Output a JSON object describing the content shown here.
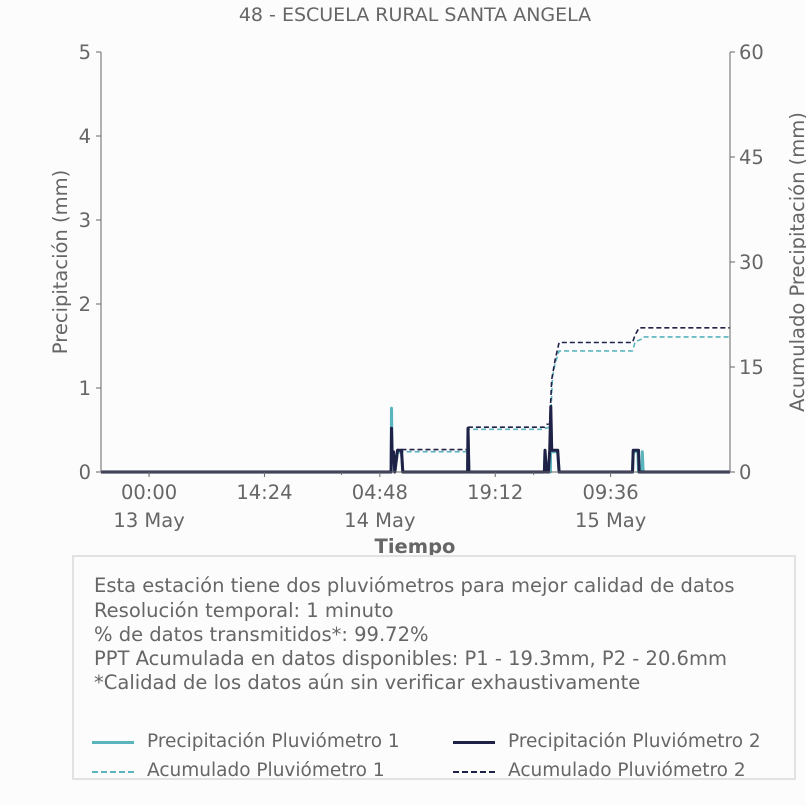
{
  "chart_data": {
    "type": "line",
    "title": "48 - ESCUELA RURAL SANTA ANGELA",
    "xlabel": "Tiempo",
    "ylabel": "Precipitación (mm)",
    "y2label": "Acumulado Precipitación (mm)",
    "ylim": [
      0,
      5
    ],
    "y2lim": [
      0,
      60
    ],
    "yticks": [
      "0",
      "1",
      "2",
      "3",
      "4",
      "5"
    ],
    "y2ticks": [
      "0",
      "15",
      "30",
      "45",
      "60"
    ],
    "xlim": [
      "2023-05-12T18:00",
      "2023-05-16T00:30"
    ],
    "xticks": [
      {
        "x": "2023-05-13T00:00",
        "time": "00:00",
        "date": "13 May"
      },
      {
        "x": "2023-05-13T14:24",
        "time": "14:24",
        "date": ""
      },
      {
        "x": "2023-05-14T04:48",
        "time": "04:48",
        "date": "14 May"
      },
      {
        "x": "2023-05-14T19:12",
        "time": "19:12",
        "date": ""
      },
      {
        "x": "2023-05-15T09:36",
        "time": "09:36",
        "date": "15 May"
      }
    ],
    "date_ticks": [
      {
        "x": "2023-05-13T00:00",
        "label": "13 May"
      },
      {
        "x": "2023-05-14T00:00",
        "label": "14 May"
      },
      {
        "x": "2023-05-15T00:00",
        "label": "15 May"
      }
    ],
    "grid": false,
    "series": [
      {
        "name": "Precipitación Pluviómetro 1",
        "axis": "left",
        "style": "solid",
        "color": "#5ab4be",
        "points": [
          [
            "2023-05-12T18:00",
            0
          ],
          [
            "2023-05-14T06:12",
            0
          ],
          [
            "2023-05-14T06:15",
            0.76
          ],
          [
            "2023-05-14T06:20",
            0.2
          ],
          [
            "2023-05-14T06:30",
            0.24
          ],
          [
            "2023-05-14T06:40",
            0
          ],
          [
            "2023-05-14T07:00",
            0.24
          ],
          [
            "2023-05-14T07:30",
            0.24
          ],
          [
            "2023-05-14T07:40",
            0
          ],
          [
            "2023-05-14T15:45",
            0
          ],
          [
            "2023-05-14T15:48",
            0.48
          ],
          [
            "2023-05-14T15:55",
            0
          ],
          [
            "2023-05-15T01:20",
            0
          ],
          [
            "2023-05-15T01:25",
            0.24
          ],
          [
            "2023-05-15T01:35",
            0
          ],
          [
            "2023-05-15T02:05",
            0
          ],
          [
            "2023-05-15T02:08",
            0.7
          ],
          [
            "2023-05-15T02:15",
            0.24
          ],
          [
            "2023-05-15T03:00",
            0.24
          ],
          [
            "2023-05-15T03:10",
            0
          ],
          [
            "2023-05-15T12:20",
            0
          ],
          [
            "2023-05-15T12:25",
            0.24
          ],
          [
            "2023-05-15T13:00",
            0.24
          ],
          [
            "2023-05-15T13:05",
            0
          ],
          [
            "2023-05-15T13:30",
            0
          ],
          [
            "2023-05-15T13:33",
            0.24
          ],
          [
            "2023-05-15T13:40",
            0
          ],
          [
            "2023-05-16T00:30",
            0
          ]
        ]
      },
      {
        "name": "Precipitación Pluviómetro 2",
        "axis": "left",
        "style": "solid",
        "color": "#1f2147",
        "points": [
          [
            "2023-05-12T18:00",
            0
          ],
          [
            "2023-05-14T06:12",
            0
          ],
          [
            "2023-05-14T06:15",
            0.52
          ],
          [
            "2023-05-14T06:20",
            0.24
          ],
          [
            "2023-05-14T06:30",
            0.24
          ],
          [
            "2023-05-14T06:40",
            0
          ],
          [
            "2023-05-14T07:00",
            0.26
          ],
          [
            "2023-05-14T07:30",
            0.26
          ],
          [
            "2023-05-14T07:40",
            0
          ],
          [
            "2023-05-14T15:45",
            0
          ],
          [
            "2023-05-14T15:48",
            0.52
          ],
          [
            "2023-05-14T15:55",
            0
          ],
          [
            "2023-05-15T01:20",
            0
          ],
          [
            "2023-05-15T01:25",
            0.26
          ],
          [
            "2023-05-15T01:35",
            0
          ],
          [
            "2023-05-15T01:50",
            0
          ],
          [
            "2023-05-15T02:00",
            0.26
          ],
          [
            "2023-05-15T02:08",
            0.78
          ],
          [
            "2023-05-15T02:15",
            0.26
          ],
          [
            "2023-05-15T03:00",
            0.26
          ],
          [
            "2023-05-15T03:10",
            0
          ],
          [
            "2023-05-15T12:20",
            0
          ],
          [
            "2023-05-15T12:25",
            0.26
          ],
          [
            "2023-05-15T13:05",
            0.26
          ],
          [
            "2023-05-15T13:10",
            0
          ],
          [
            "2023-05-16T00:30",
            0
          ]
        ]
      },
      {
        "name": "Acumulado Pluviómetro 1",
        "axis": "right",
        "style": "dashed",
        "color": "#5ab4be",
        "points": [
          [
            "2023-05-12T18:00",
            0
          ],
          [
            "2023-05-14T06:12",
            0
          ],
          [
            "2023-05-14T06:20",
            1.7
          ],
          [
            "2023-05-14T06:50",
            2.0
          ],
          [
            "2023-05-14T07:30",
            2.9
          ],
          [
            "2023-05-14T15:45",
            2.9
          ],
          [
            "2023-05-14T15:52",
            6.1
          ],
          [
            "2023-05-15T01:20",
            6.1
          ],
          [
            "2023-05-15T01:35",
            6.3
          ],
          [
            "2023-05-15T02:05",
            6.4
          ],
          [
            "2023-05-15T02:20",
            13.5
          ],
          [
            "2023-05-15T02:40",
            15.5
          ],
          [
            "2023-05-15T03:10",
            17.3
          ],
          [
            "2023-05-15T12:20",
            17.3
          ],
          [
            "2023-05-15T12:40",
            18.6
          ],
          [
            "2023-05-15T13:30",
            19.0
          ],
          [
            "2023-05-15T13:40",
            19.3
          ],
          [
            "2023-05-16T00:30",
            19.3
          ]
        ]
      },
      {
        "name": "Acumulado Pluviómetro 2",
        "axis": "right",
        "style": "dashed",
        "color": "#1f2147",
        "points": [
          [
            "2023-05-12T18:00",
            0
          ],
          [
            "2023-05-14T06:12",
            0
          ],
          [
            "2023-05-14T06:20",
            2.2
          ],
          [
            "2023-05-14T06:50",
            2.3
          ],
          [
            "2023-05-14T07:00",
            3.2
          ],
          [
            "2023-05-14T15:45",
            3.2
          ],
          [
            "2023-05-14T15:52",
            6.4
          ],
          [
            "2023-05-15T01:20",
            6.4
          ],
          [
            "2023-05-15T01:35",
            6.8
          ],
          [
            "2023-05-15T02:00",
            6.9
          ],
          [
            "2023-05-15T02:15",
            13.2
          ],
          [
            "2023-05-15T02:40",
            16.0
          ],
          [
            "2023-05-15T03:10",
            18.5
          ],
          [
            "2023-05-15T12:20",
            18.5
          ],
          [
            "2023-05-15T12:40",
            19.6
          ],
          [
            "2023-05-15T13:10",
            20.6
          ],
          [
            "2023-05-16T00:30",
            20.6
          ]
        ]
      }
    ]
  },
  "info_box": {
    "lines": [
      "Esta estación tiene dos pluviómetros para mejor calidad de datos",
      "Resolución temporal: 1 minuto",
      "% de datos transmitidos*: 99.72%",
      "PPT Acumulada en datos disponibles: P1 - 19.3mm, P2 - 20.6mm",
      "*Calidad de los datos aún sin verificar exhaustivamente"
    ]
  },
  "legend": {
    "placement": "bottom",
    "items": [
      {
        "label": "Precipitación Pluviómetro 1",
        "color": "#5ab4be",
        "style": "solid"
      },
      {
        "label": "Precipitación Pluviómetro 2",
        "color": "#1f2147",
        "style": "solid"
      },
      {
        "label": "Acumulado Pluviómetro 1",
        "color": "#5ab4be",
        "style": "dashed"
      },
      {
        "label": "Acumulado Pluviómetro 2",
        "color": "#1f2147",
        "style": "dashed"
      }
    ]
  }
}
